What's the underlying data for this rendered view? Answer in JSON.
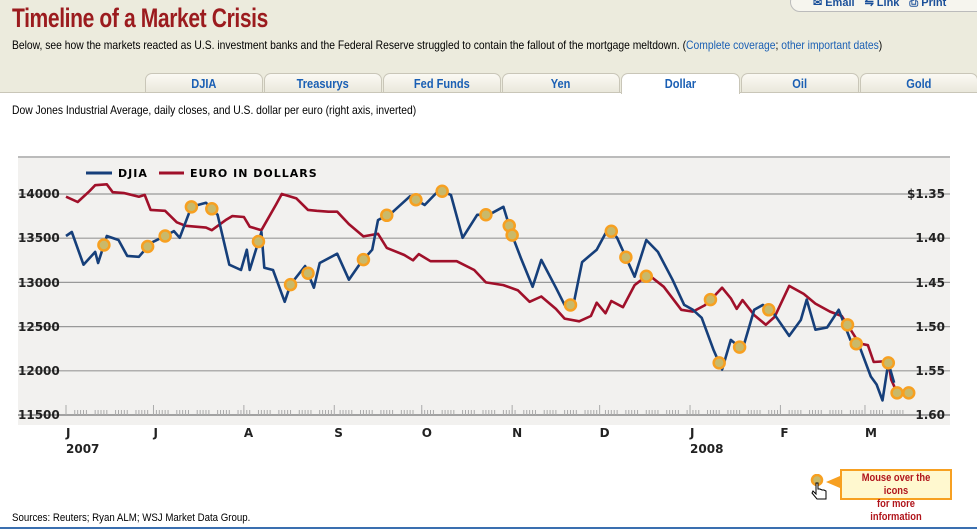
{
  "header": {
    "title": "Timeline of a Market Crisis",
    "subtitle_text": "Below, see how the markets reacted as U.S. investment banks and the Federal Reserve struggled to contain the fallout of the mortgage meltdown. (",
    "link_complete": "Complete coverage",
    "separator": "; ",
    "link_dates": "other important dates",
    "close_paren": ")",
    "tools": {
      "email": "Email",
      "link": "Link",
      "print": "Print"
    }
  },
  "tabs": [
    {
      "label": "DJIA",
      "active": false
    },
    {
      "label": "Treasurys",
      "active": false
    },
    {
      "label": "Fed Funds",
      "active": false
    },
    {
      "label": "Yen",
      "active": false
    },
    {
      "label": "Dollar",
      "active": true
    },
    {
      "label": "Oil",
      "active": false
    },
    {
      "label": "Gold",
      "active": false
    }
  ],
  "description": "Dow Jones Industrial Average, daily closes, and U.S. dollar per euro (right axis, inverted)",
  "callout": {
    "line1": "Mouse over the icons",
    "line2": "for more information"
  },
  "sources": "Sources: Reuters; Ryan ALM; WSJ Market Data Group.",
  "colors": {
    "djia": "#163f7a",
    "euro": "#a0102a",
    "marker": "#f7a021",
    "title": "#9b1b1e",
    "panel": "#f2f1ef"
  },
  "chart_data": {
    "type": "line",
    "grid": true,
    "legend_position": "top-left",
    "left_axis": {
      "ticks": [
        "14000",
        "13500",
        "13000",
        "12500",
        "12000",
        "11500"
      ],
      "range": [
        11500,
        14000
      ]
    },
    "right_axis": {
      "ticks": [
        "$1.35",
        "1.40",
        "1.45",
        "1.50",
        "1.55",
        "1.60"
      ],
      "range": [
        1.35,
        1.6
      ],
      "inverted": true
    },
    "x_axis": {
      "range": [
        "2007-06-01",
        "2008-03-14"
      ],
      "months": [
        {
          "date": "2007-06-01",
          "label": "J",
          "year": "2007"
        },
        {
          "date": "2007-07-01",
          "label": "J"
        },
        {
          "date": "2007-08-01",
          "label": "A"
        },
        {
          "date": "2007-09-01",
          "label": "S"
        },
        {
          "date": "2007-10-01",
          "label": "O"
        },
        {
          "date": "2007-11-01",
          "label": "N"
        },
        {
          "date": "2007-12-01",
          "label": "D"
        },
        {
          "date": "2008-01-01",
          "label": "J",
          "year": "2008"
        },
        {
          "date": "2008-02-01",
          "label": "F"
        },
        {
          "date": "2008-03-01",
          "label": "M"
        }
      ]
    },
    "series": [
      {
        "name": "DJIA",
        "axis": "left",
        "points": [
          [
            "2007-06-01",
            13525
          ],
          [
            "2007-06-03",
            13570
          ],
          [
            "2007-06-07",
            13200
          ],
          [
            "2007-06-11",
            13345
          ],
          [
            "2007-06-12",
            13220
          ],
          [
            "2007-06-15",
            13525
          ],
          [
            "2007-06-19",
            13480
          ],
          [
            "2007-06-22",
            13300
          ],
          [
            "2007-06-26",
            13290
          ],
          [
            "2007-06-30",
            13445
          ],
          [
            "2007-07-05",
            13525
          ],
          [
            "2007-07-08",
            13580
          ],
          [
            "2007-07-10",
            13505
          ],
          [
            "2007-07-14",
            13855
          ],
          [
            "2007-07-19",
            13900
          ],
          [
            "2007-07-23",
            13765
          ],
          [
            "2007-07-27",
            13200
          ],
          [
            "2007-07-31",
            13140
          ],
          [
            "2007-08-02",
            13370
          ],
          [
            "2007-08-03",
            13140
          ],
          [
            "2007-08-07",
            13570
          ],
          [
            "2007-08-08",
            13165
          ],
          [
            "2007-08-11",
            13140
          ],
          [
            "2007-08-15",
            12780
          ],
          [
            "2007-08-17",
            12975
          ],
          [
            "2007-08-22",
            13185
          ],
          [
            "2007-08-25",
            12940
          ],
          [
            "2007-08-27",
            13220
          ],
          [
            "2007-09-02",
            13325
          ],
          [
            "2007-09-06",
            13030
          ],
          [
            "2007-09-10",
            13220
          ],
          [
            "2007-09-14",
            13370
          ],
          [
            "2007-09-16",
            13705
          ],
          [
            "2007-09-21",
            13795
          ],
          [
            "2007-09-27",
            13975
          ],
          [
            "2007-10-02",
            13875
          ],
          [
            "2007-10-07",
            14045
          ],
          [
            "2007-10-11",
            13990
          ],
          [
            "2007-10-15",
            13505
          ],
          [
            "2007-10-20",
            13765
          ],
          [
            "2007-10-24",
            13765
          ],
          [
            "2007-10-29",
            13855
          ],
          [
            "2007-11-01",
            13535
          ],
          [
            "2007-11-04",
            13275
          ],
          [
            "2007-11-08",
            12950
          ],
          [
            "2007-11-11",
            13255
          ],
          [
            "2007-11-16",
            12940
          ],
          [
            "2007-11-19",
            12745
          ],
          [
            "2007-11-22",
            12745
          ],
          [
            "2007-11-25",
            13230
          ],
          [
            "2007-11-30",
            13370
          ],
          [
            "2007-12-04",
            13615
          ],
          [
            "2007-12-07",
            13505
          ],
          [
            "2007-12-13",
            13065
          ],
          [
            "2007-12-17",
            13480
          ],
          [
            "2007-12-21",
            13345
          ],
          [
            "2007-12-26",
            13030
          ],
          [
            "2007-12-30",
            12745
          ],
          [
            "2008-01-02",
            12690
          ],
          [
            "2008-01-05",
            12600
          ],
          [
            "2008-01-09",
            12240
          ],
          [
            "2008-01-12",
            12015
          ],
          [
            "2008-01-15",
            12350
          ],
          [
            "2008-01-19",
            12240
          ],
          [
            "2008-01-23",
            12690
          ],
          [
            "2008-01-26",
            12745
          ],
          [
            "2008-01-30",
            12635
          ],
          [
            "2008-02-04",
            12395
          ],
          [
            "2008-02-08",
            12575
          ],
          [
            "2008-02-10",
            12805
          ],
          [
            "2008-02-13",
            12465
          ],
          [
            "2008-02-17",
            12490
          ],
          [
            "2008-02-21",
            12690
          ],
          [
            "2008-02-25",
            12350
          ],
          [
            "2008-02-28",
            12285
          ],
          [
            "2008-03-03",
            11935
          ],
          [
            "2008-03-05",
            11845
          ],
          [
            "2008-03-07",
            11665
          ],
          [
            "2008-03-09",
            12090
          ],
          [
            "2008-03-11",
            11865
          ]
        ]
      },
      {
        "name": "EURO IN DOLLARS",
        "axis": "right",
        "points": [
          [
            "2007-06-01",
            1.353
          ],
          [
            "2007-06-05",
            1.359
          ],
          [
            "2007-06-09",
            1.347
          ],
          [
            "2007-06-11",
            1.34
          ],
          [
            "2007-06-15",
            1.339
          ],
          [
            "2007-06-17",
            1.348
          ],
          [
            "2007-06-21",
            1.349
          ],
          [
            "2007-06-26",
            1.353
          ],
          [
            "2007-06-28",
            1.351
          ],
          [
            "2007-06-30",
            1.368
          ],
          [
            "2007-07-05",
            1.369
          ],
          [
            "2007-07-09",
            1.382
          ],
          [
            "2007-07-12",
            1.386
          ],
          [
            "2007-07-19",
            1.388
          ],
          [
            "2007-07-21",
            1.391
          ],
          [
            "2007-07-26",
            1.379
          ],
          [
            "2007-07-28",
            1.375
          ],
          [
            "2007-08-01",
            1.376
          ],
          [
            "2007-08-03",
            1.387
          ],
          [
            "2007-08-07",
            1.391
          ],
          [
            "2007-08-12",
            1.362
          ],
          [
            "2007-08-14",
            1.35
          ],
          [
            "2007-08-19",
            1.355
          ],
          [
            "2007-08-23",
            1.368
          ],
          [
            "2007-08-26",
            1.369
          ],
          [
            "2007-08-30",
            1.37
          ],
          [
            "2007-09-02",
            1.37
          ],
          [
            "2007-09-06",
            1.384
          ],
          [
            "2007-09-11",
            1.398
          ],
          [
            "2007-09-16",
            1.395
          ],
          [
            "2007-09-19",
            1.411
          ],
          [
            "2007-09-25",
            1.419
          ],
          [
            "2007-09-28",
            1.425
          ],
          [
            "2007-09-30",
            1.418
          ],
          [
            "2007-10-04",
            1.426
          ],
          [
            "2007-10-08",
            1.426
          ],
          [
            "2007-10-13",
            1.426
          ],
          [
            "2007-10-19",
            1.436
          ],
          [
            "2007-10-23",
            1.45
          ],
          [
            "2007-10-29",
            1.453
          ],
          [
            "2007-11-03",
            1.459
          ],
          [
            "2007-11-07",
            1.472
          ],
          [
            "2007-11-11",
            1.466
          ],
          [
            "2007-11-16",
            1.48
          ],
          [
            "2007-11-19",
            1.491
          ],
          [
            "2007-11-24",
            1.494
          ],
          [
            "2007-11-28",
            1.488
          ],
          [
            "2007-11-30",
            1.473
          ],
          [
            "2007-12-03",
            1.485
          ],
          [
            "2007-12-05",
            1.471
          ],
          [
            "2007-12-09",
            1.478
          ],
          [
            "2007-12-13",
            1.453
          ],
          [
            "2007-12-17",
            1.443
          ],
          [
            "2007-12-18",
            1.442
          ],
          [
            "2007-12-23",
            1.455
          ],
          [
            "2007-12-29",
            1.481
          ],
          [
            "2008-01-02",
            1.483
          ],
          [
            "2008-01-06",
            1.476
          ],
          [
            "2008-01-10",
            1.463
          ],
          [
            "2008-01-12",
            1.456
          ],
          [
            "2008-01-15",
            1.468
          ],
          [
            "2008-01-17",
            1.48
          ],
          [
            "2008-01-19",
            1.47
          ],
          [
            "2008-01-23",
            1.487
          ],
          [
            "2008-01-27",
            1.498
          ],
          [
            "2008-01-30",
            1.489
          ],
          [
            "2008-02-04",
            1.454
          ],
          [
            "2008-02-09",
            1.463
          ],
          [
            "2008-02-13",
            1.474
          ],
          [
            "2008-02-18",
            1.483
          ],
          [
            "2008-02-22",
            1.488
          ],
          [
            "2008-02-25",
            1.503
          ],
          [
            "2008-02-28",
            1.519
          ],
          [
            "2008-03-02",
            1.521
          ],
          [
            "2008-03-04",
            1.54
          ],
          [
            "2008-03-09",
            1.539
          ],
          [
            "2008-03-10",
            1.56
          ],
          [
            "2008-03-12",
            1.575
          ]
        ]
      }
    ],
    "event_markers": [
      {
        "date": "2007-06-14",
        "series": 0
      },
      {
        "date": "2007-06-29",
        "series": 0
      },
      {
        "date": "2007-07-05",
        "series": 0
      },
      {
        "date": "2007-07-14",
        "series": 0
      },
      {
        "date": "2007-07-21",
        "series": 0
      },
      {
        "date": "2007-08-06",
        "series": 0
      },
      {
        "date": "2007-08-17",
        "series": 0
      },
      {
        "date": "2007-08-23",
        "series": 0
      },
      {
        "date": "2007-09-11",
        "series": 0
      },
      {
        "date": "2007-09-19",
        "series": 0
      },
      {
        "date": "2007-09-29",
        "series": 0
      },
      {
        "date": "2007-10-08",
        "series": 0
      },
      {
        "date": "2007-10-23",
        "series": 0
      },
      {
        "date": "2007-10-31",
        "series": 0
      },
      {
        "date": "2007-11-01",
        "series": 0
      },
      {
        "date": "2007-11-21",
        "series": 0
      },
      {
        "date": "2007-12-05",
        "series": 0
      },
      {
        "date": "2007-12-10",
        "series": 0
      },
      {
        "date": "2007-12-17",
        "series": 1
      },
      {
        "date": "2008-01-08",
        "series": 1
      },
      {
        "date": "2008-01-11",
        "series": 0
      },
      {
        "date": "2008-01-18",
        "series": 0
      },
      {
        "date": "2008-01-28",
        "series": 0
      },
      {
        "date": "2008-02-24",
        "series": 1
      },
      {
        "date": "2008-02-27",
        "series": 0
      },
      {
        "date": "2008-03-09",
        "series": 0
      },
      {
        "date": "2008-03-12",
        "series": 1
      },
      {
        "date": "2008-03-16",
        "series": 1
      }
    ]
  }
}
